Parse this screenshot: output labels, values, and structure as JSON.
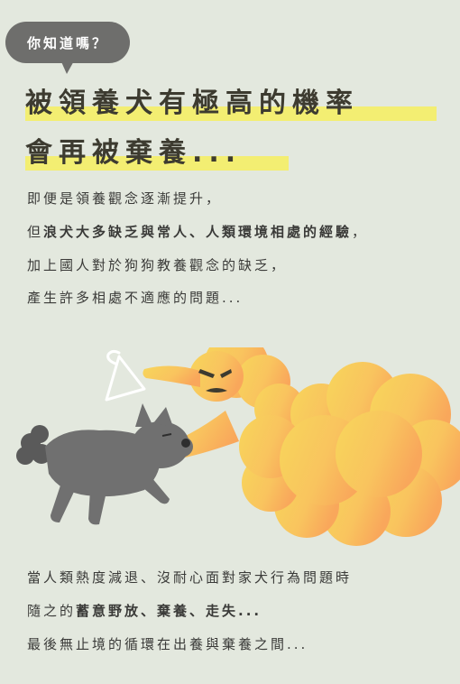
{
  "badge": {
    "label": "你知道嗎？"
  },
  "headline": {
    "line1": "被領養犬有極高的機率",
    "line2": "會再被棄養..."
  },
  "intro": {
    "line1": "即便是領養觀念逐漸提升，",
    "line2_pre": "但",
    "line2_bold": "浪犬大多缺乏與常人、人類環境相處的經驗",
    "line2_post": "，",
    "line3": "加上國人對於狗狗教養觀念的缺乏，",
    "line4": "產生許多相處不適應的問題..."
  },
  "outro": {
    "line1": "當人類熱度減退、沒耐心面對家犬行為問題時",
    "line2_pre": "隨之的",
    "line2_bold": "蓄意野放、棄養、走失...",
    "line3": "最後無止境的循環在出養與棄養之間..."
  },
  "colors": {
    "background": "#E3E8DE",
    "badge": "#6E6E6C",
    "highlight": "#F3EE72",
    "ghost": "#F7D65B",
    "ghost_fade": "#F9A75B",
    "dog": "#707070"
  }
}
